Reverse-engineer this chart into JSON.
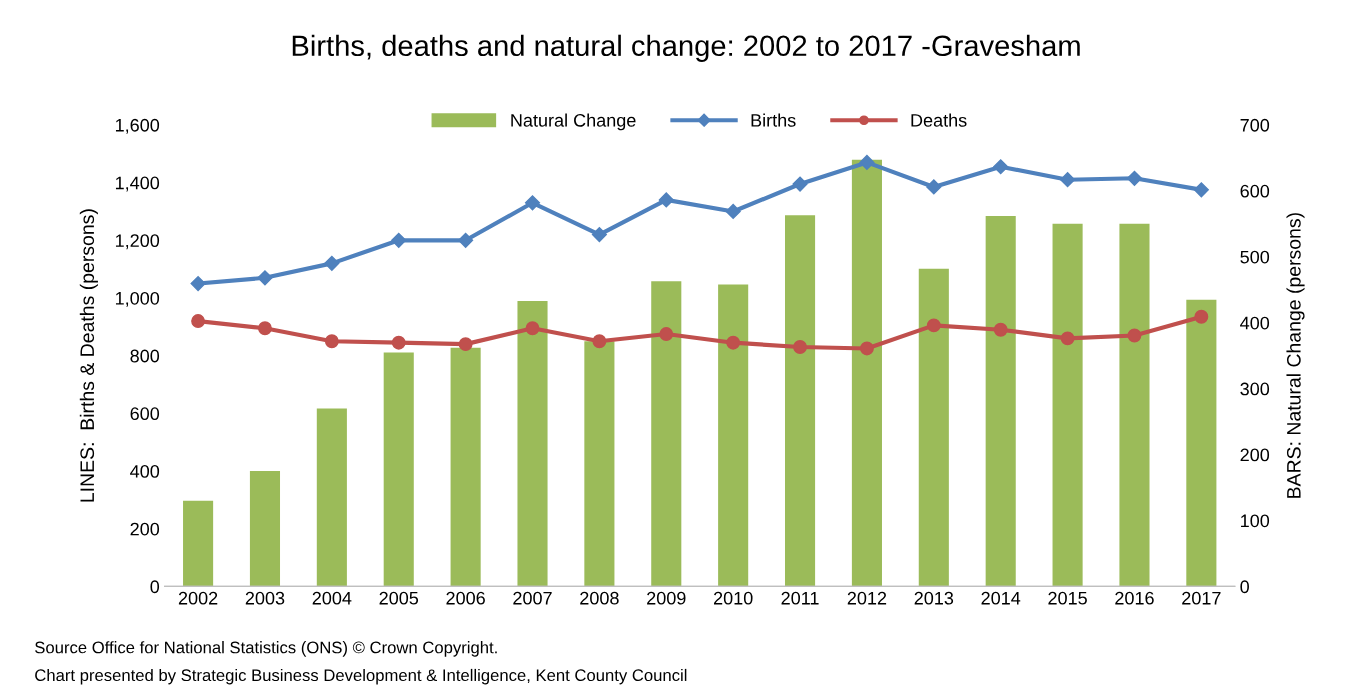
{
  "chart_data": {
    "type": "bar",
    "title": "Births, deaths and natural change: 2002 to 2017 -Gravesham",
    "categories": [
      "2002",
      "2003",
      "2004",
      "2005",
      "2006",
      "2007",
      "2008",
      "2009",
      "2010",
      "2011",
      "2012",
      "2013",
      "2014",
      "2015",
      "2016",
      "2017"
    ],
    "series": [
      {
        "name": "Natural Change",
        "axis": "y2",
        "color": "#9bbb59",
        "values": [
          130,
          175,
          270,
          355,
          362,
          433,
          372,
          463,
          458,
          563,
          647,
          482,
          562,
          550,
          550,
          435
        ]
      },
      {
        "name": "Births",
        "type": "line",
        "marker": "diamond",
        "color": "#4f81bd",
        "values": [
          1050,
          1070,
          1120,
          1200,
          1200,
          1330,
          1220,
          1340,
          1300,
          1395,
          1470,
          1385,
          1455,
          1410,
          1415,
          1375
        ]
      },
      {
        "name": "Deaths",
        "type": "line",
        "marker": "circle",
        "color": "#c0504d",
        "values": [
          920,
          895,
          850,
          845,
          840,
          895,
          850,
          875,
          845,
          830,
          825,
          905,
          890,
          860,
          870,
          935
        ]
      }
    ],
    "ylabel": "LINES:  Births & Deaths (persons)",
    "y2label": "BARS: Natural Change (persons)",
    "ylim": [
      0,
      1600
    ],
    "yticks": [
      {
        "value": 0,
        "label": "0"
      },
      {
        "value": 200,
        "label": "200"
      },
      {
        "value": 400,
        "label": "400"
      },
      {
        "value": 600,
        "label": "600"
      },
      {
        "value": 800,
        "label": "800"
      },
      {
        "value": 1000,
        "label": "1,000"
      },
      {
        "value": 1200,
        "label": "1,200"
      },
      {
        "value": 1400,
        "label": "1,400"
      },
      {
        "value": 1600,
        "label": "1,600"
      }
    ],
    "y2lim": [
      0,
      700
    ],
    "y2ticks": [
      0,
      100,
      200,
      300,
      400,
      500,
      600,
      700
    ],
    "legend": "top",
    "grid": false,
    "annotations": [
      "Source Office for National Statistics (ONS) © Crown Copyright.",
      "Chart presented by Strategic Business Development & Intelligence, Kent County Council"
    ]
  }
}
